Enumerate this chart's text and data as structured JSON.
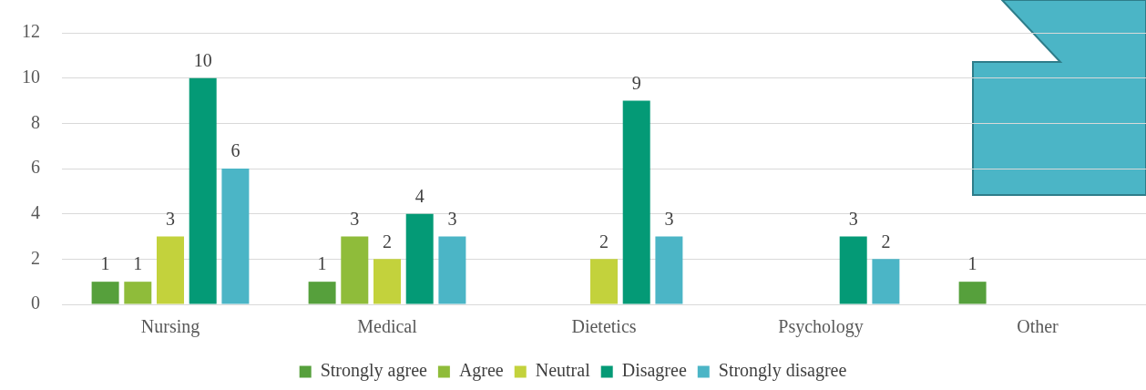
{
  "chart_data": {
    "type": "bar",
    "categories": [
      "Nursing",
      "Medical",
      "Dietetics",
      "Psychology",
      "Other"
    ],
    "series": [
      {
        "name": "Strongly agree",
        "color": "#56a03c",
        "values": [
          1,
          1,
          null,
          null,
          1
        ]
      },
      {
        "name": "Agree",
        "color": "#8fbc3a",
        "values": [
          1,
          3,
          null,
          null,
          null
        ]
      },
      {
        "name": "Neutral",
        "color": "#c3d23c",
        "values": [
          3,
          2,
          2,
          null,
          null
        ]
      },
      {
        "name": "Disagree",
        "color": "#049a76",
        "values": [
          10,
          4,
          9,
          3,
          null
        ]
      },
      {
        "name": "Strongly disagree",
        "color": "#4bb5c6",
        "values": [
          6,
          3,
          3,
          2,
          null
        ]
      }
    ],
    "ylim": [
      0,
      12
    ],
    "yticks": [
      0,
      2,
      4,
      6,
      8,
      10,
      12
    ],
    "grid": "y",
    "legend": "bottom",
    "data_labels": true
  }
}
